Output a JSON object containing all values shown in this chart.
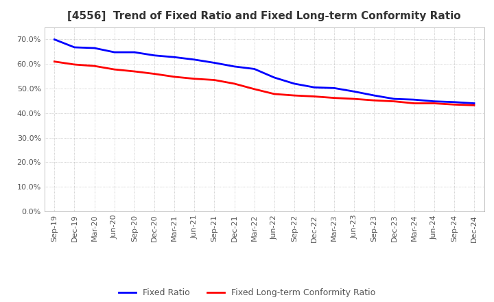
{
  "title": "[4556]  Trend of Fixed Ratio and Fixed Long-term Conformity Ratio",
  "x_labels": [
    "Sep-19",
    "Dec-19",
    "Mar-20",
    "Jun-20",
    "Sep-20",
    "Dec-20",
    "Mar-21",
    "Jun-21",
    "Sep-21",
    "Dec-21",
    "Mar-22",
    "Jun-22",
    "Sep-22",
    "Dec-22",
    "Mar-23",
    "Jun-23",
    "Sep-23",
    "Dec-23",
    "Mar-24",
    "Jun-24",
    "Sep-24",
    "Dec-24"
  ],
  "fixed_ratio": [
    0.7,
    0.668,
    0.665,
    0.648,
    0.648,
    0.635,
    0.628,
    0.618,
    0.605,
    0.59,
    0.58,
    0.545,
    0.52,
    0.505,
    0.502,
    0.488,
    0.472,
    0.458,
    0.455,
    0.448,
    0.445,
    0.44
  ],
  "fixed_lt_ratio": [
    0.61,
    0.598,
    0.592,
    0.578,
    0.57,
    0.56,
    0.548,
    0.54,
    0.535,
    0.52,
    0.498,
    0.478,
    0.472,
    0.468,
    0.462,
    0.458,
    0.452,
    0.448,
    0.44,
    0.44,
    0.435,
    0.432
  ],
  "ylim": [
    0.0,
    0.75
  ],
  "yticks": [
    0.0,
    0.1,
    0.2,
    0.3,
    0.4,
    0.5,
    0.6,
    0.7
  ],
  "fixed_ratio_color": "#0000FF",
  "fixed_lt_ratio_color": "#FF0000",
  "line_width": 2.0,
  "grid_color": "#aaaaaa",
  "background_color": "#ffffff",
  "title_fontsize": 11,
  "tick_fontsize": 8,
  "legend_fontsize": 9
}
